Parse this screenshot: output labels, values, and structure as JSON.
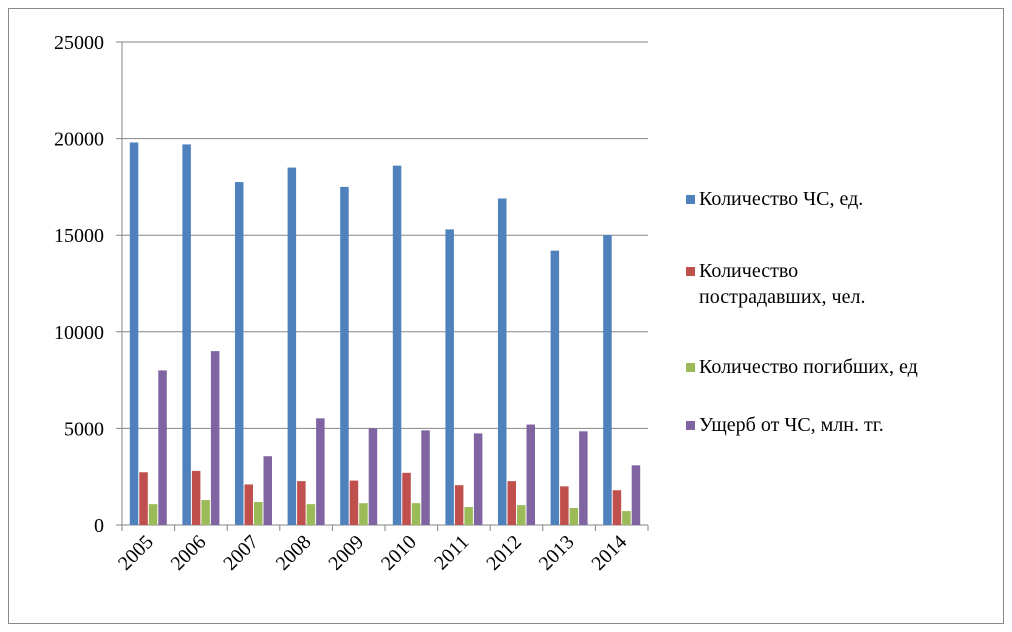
{
  "chart_data": {
    "type": "bar",
    "categories": [
      "2005",
      "2006",
      "2007",
      "2008",
      "2009",
      "2010",
      "2011",
      "2012",
      "2013",
      "2014"
    ],
    "series": [
      {
        "name": "Количество ЧС, ед.",
        "color": "#4f81bd",
        "values": [
          19800,
          19700,
          17750,
          18500,
          17500,
          18600,
          15300,
          16900,
          14200,
          15000
        ]
      },
      {
        "name": "Количество пострадавших, чел.",
        "color": "#c0504d",
        "values": [
          2730,
          2800,
          2100,
          2270,
          2300,
          2700,
          2060,
          2270,
          2000,
          1800
        ]
      },
      {
        "name": "Количество погибших, ед",
        "color": "#9bbb59",
        "values": [
          1080,
          1290,
          1190,
          1080,
          1130,
          1130,
          930,
          1030,
          880,
          720
        ]
      },
      {
        "name": "Ущерб от ЧС, млн. тг.",
        "color": "#8064a2",
        "values": [
          8000,
          9000,
          3560,
          5520,
          5000,
          4900,
          4740,
          5200,
          4850,
          3090
        ]
      }
    ],
    "ylim": [
      0,
      25000
    ],
    "yticks": [
      0,
      5000,
      10000,
      15000,
      20000,
      25000
    ],
    "grid": true,
    "legend": "right"
  }
}
